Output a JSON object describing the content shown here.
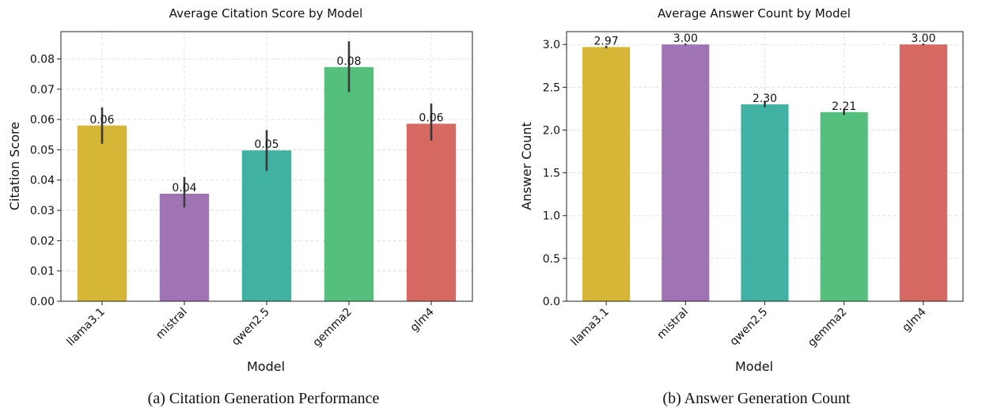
{
  "chart_data": [
    {
      "type": "bar",
      "title": "Average Citation Score by Model",
      "xlabel": "Model",
      "ylabel": "Citation Score",
      "caption": "(a) Citation Generation Performance",
      "categories": [
        "llama3.1",
        "mistral",
        "qwen2.5",
        "gemma2",
        "glm4"
      ],
      "values": [
        0.058,
        0.0355,
        0.0498,
        0.0773,
        0.0586
      ],
      "error_low": [
        0.052,
        0.031,
        0.043,
        0.069,
        0.053
      ],
      "error_high": [
        0.064,
        0.041,
        0.0565,
        0.0858,
        0.0653
      ],
      "data_labels": [
        "0.06",
        "0.04",
        "0.05",
        "0.08",
        "0.06"
      ],
      "colors": [
        "#d4b22b",
        "#9b6bb1",
        "#36ad9d",
        "#4cbd76",
        "#d4625a"
      ],
      "ylim": [
        0,
        0.089
      ],
      "yticks": [
        "0.00",
        "0.01",
        "0.02",
        "0.03",
        "0.04",
        "0.05",
        "0.06",
        "0.07",
        "0.08"
      ],
      "ytick_values": [
        0,
        0.01,
        0.02,
        0.03,
        0.04,
        0.05,
        0.06,
        0.07,
        0.08
      ],
      "grid": true
    },
    {
      "type": "bar",
      "title": "Average Answer Count by Model",
      "xlabel": "Model",
      "ylabel": "Answer Count",
      "caption": "(b) Answer Generation Count",
      "categories": [
        "llama3.1",
        "mistral",
        "qwen2.5",
        "gemma2",
        "glm4"
      ],
      "values": [
        2.97,
        3.0,
        2.3,
        2.21,
        3.0
      ],
      "error_low": [
        2.955,
        2.99,
        2.265,
        2.175,
        2.99
      ],
      "error_high": [
        2.985,
        3.01,
        2.335,
        2.245,
        3.01
      ],
      "data_labels": [
        "2.97",
        "3.00",
        "2.30",
        "2.21",
        "3.00"
      ],
      "colors": [
        "#d4b22b",
        "#9b6bb1",
        "#36ad9d",
        "#4cbd76",
        "#d4625a"
      ],
      "ylim": [
        0,
        3.15
      ],
      "yticks": [
        "0.0",
        "0.5",
        "1.0",
        "1.5",
        "2.0",
        "2.5",
        "3.0"
      ],
      "ytick_values": [
        0,
        0.5,
        1.0,
        1.5,
        2.0,
        2.5,
        3.0
      ],
      "grid": true
    }
  ]
}
